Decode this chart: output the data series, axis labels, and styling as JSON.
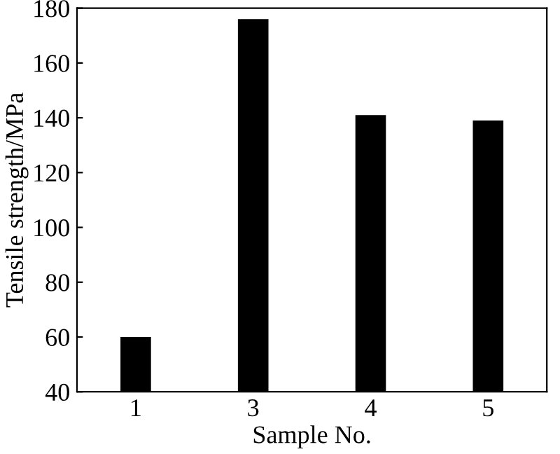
{
  "chart_data": {
    "type": "bar",
    "xlabel": "Sample No.",
    "ylabel": "Tensile strength/MPa",
    "categories": [
      "1",
      "3",
      "4",
      "5"
    ],
    "values": [
      60,
      176,
      141,
      139
    ],
    "color": "#000000",
    "ylim": [
      40,
      180
    ],
    "yticks": [
      40,
      60,
      80,
      100,
      120,
      140,
      160,
      180
    ],
    "grid": false,
    "legend": false
  }
}
